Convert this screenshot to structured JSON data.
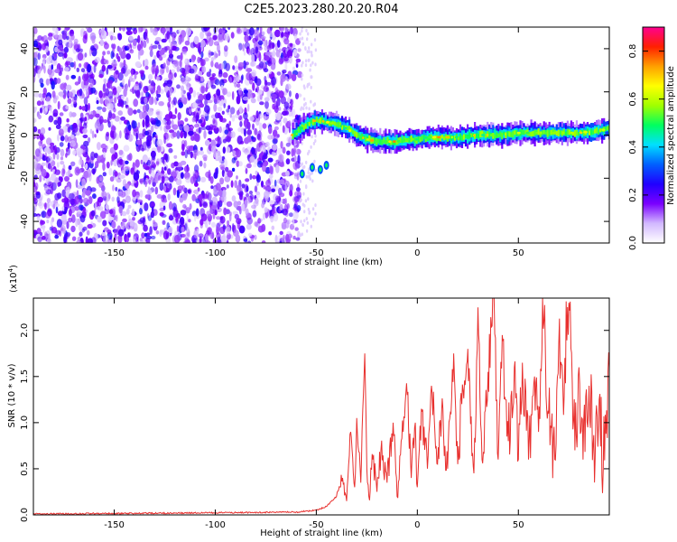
{
  "title": "C2E5.2023.280.20.20.R04",
  "chart_data": [
    {
      "type": "heatmap",
      "xlabel": "Height of straight line (km)",
      "ylabel": "Frequency (Hz)",
      "colorbar_label": "Normalized spectral amplitude",
      "xlim": [
        -190,
        95
      ],
      "ylim": [
        -50,
        50
      ],
      "x_ticks": [
        -150,
        -100,
        -50,
        0,
        50
      ],
      "y_ticks": [
        -40,
        -20,
        0,
        20,
        40
      ],
      "colorbar_range": [
        0.0,
        0.9
      ],
      "colorbar_ticks": [
        "0.0",
        "0.2",
        "0.4",
        "0.6",
        "0.8"
      ],
      "colormap": [
        "#ffffff",
        "#d2b8ff",
        "#7a00ff",
        "#2000ff",
        "#0060ff",
        "#00e0ff",
        "#00ff60",
        "#a0ff00",
        "#ffff00",
        "#ffa000",
        "#ff2000",
        "#ff0090"
      ],
      "noise_region": {
        "x_range": [
          -190,
          -58
        ],
        "level": [
          0.05,
          0.25
        ]
      },
      "signal_trace": {
        "x": [
          -62,
          -58,
          -55,
          -50,
          -45,
          -40,
          -35,
          -30,
          -25,
          -20,
          -15,
          -10,
          -5,
          0,
          5,
          10,
          20,
          30,
          40,
          50,
          60,
          70,
          80,
          90,
          95
        ],
        "frequency": [
          0,
          3,
          5,
          7,
          6,
          5,
          3,
          0,
          -2,
          -3,
          -3,
          -3,
          -2,
          -2,
          -1,
          -1,
          -1,
          0,
          0,
          1,
          1,
          1,
          1,
          2,
          3
        ],
        "peak_amplitude": 0.85
      },
      "secondary_blobs": {
        "x": [
          -57,
          -52,
          -48,
          -45
        ],
        "frequency": [
          -18,
          -15,
          -16,
          -14
        ]
      }
    },
    {
      "type": "line",
      "xlabel": "Height of straight line (km)",
      "ylabel": "SNR (10 * v/v)",
      "y_scale_label": "(x10",
      "y_scale_exp": "4",
      "y_scale_close": ")",
      "xlim": [
        -190,
        95
      ],
      "ylim": [
        0,
        2.35
      ],
      "x_ticks": [
        -150,
        -100,
        -50,
        0,
        50
      ],
      "y_ticks": [
        "0.0",
        "0.5",
        "1.0",
        "1.5",
        "2.0"
      ],
      "line_color": "#e8302e",
      "series": [
        {
          "x": [
            -190,
            -120,
            -60,
            -50,
            -45,
            -40,
            -37,
            -35,
            -33,
            -31,
            -30,
            -28,
            -26,
            -25,
            -24,
            -22,
            -20,
            -18,
            -15,
            -12,
            -10,
            -8,
            -5,
            -3,
            -1,
            0,
            2,
            5,
            7,
            10,
            12,
            15,
            18,
            20,
            22,
            25,
            28,
            30,
            32,
            35,
            37,
            38,
            40,
            42,
            45,
            48,
            50,
            52,
            55,
            58,
            60,
            62,
            65,
            68,
            70,
            72,
            75,
            78,
            80,
            82,
            85,
            88,
            90,
            92,
            95
          ],
          "values": [
            0.01,
            0.02,
            0.03,
            0.05,
            0.09,
            0.2,
            0.4,
            0.15,
            0.9,
            0.3,
            1.05,
            0.35,
            1.75,
            0.5,
            0.2,
            0.6,
            0.25,
            0.7,
            0.35,
            1.0,
            0.2,
            0.8,
            1.3,
            0.4,
            1.0,
            0.3,
            1.15,
            0.5,
            1.4,
            0.55,
            1.1,
            0.5,
            1.75,
            0.55,
            1.2,
            1.8,
            0.45,
            2.25,
            0.6,
            1.55,
            2.05,
            2.33,
            0.6,
            1.95,
            0.8,
            1.6,
            0.6,
            1.65,
            0.6,
            1.5,
            0.9,
            2.35,
            1.1,
            0.6,
            1.85,
            1.4,
            2.3,
            0.7,
            1.6,
            0.6,
            1.4,
            0.6,
            1.25,
            0.5,
            1.6
          ]
        }
      ]
    }
  ]
}
